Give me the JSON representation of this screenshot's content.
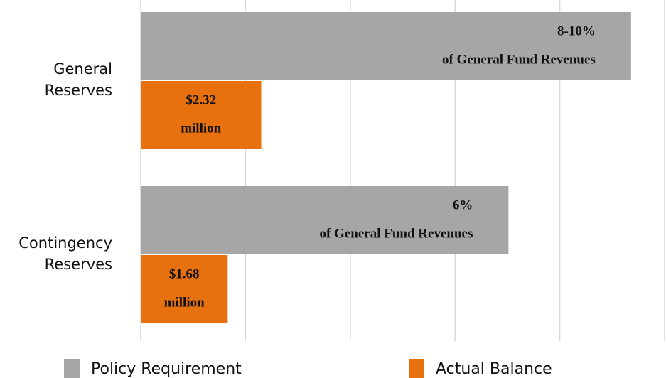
{
  "chart_data": {
    "type": "hbar",
    "categories": [
      "General Reserves",
      "Contingency Reserves"
    ],
    "series": [
      {
        "name": "Policy Requirement",
        "color": "#a6a6a6",
        "values": [
          4.68,
          3.51
        ],
        "labels": [
          [
            "8-10%",
            "of General Fund Revenues"
          ],
          [
            "6%",
            "of General Fund Revenues"
          ]
        ]
      },
      {
        "name": "Actual Balance",
        "color": "#e8710f",
        "values": [
          1.15,
          0.83
        ],
        "labels": [
          [
            "$2.32",
            "million"
          ],
          [
            "$1.68",
            "million"
          ]
        ]
      }
    ],
    "xlim": [
      0,
      5
    ],
    "xticks": [
      0,
      1,
      2,
      3,
      4,
      5
    ],
    "grid": true
  }
}
